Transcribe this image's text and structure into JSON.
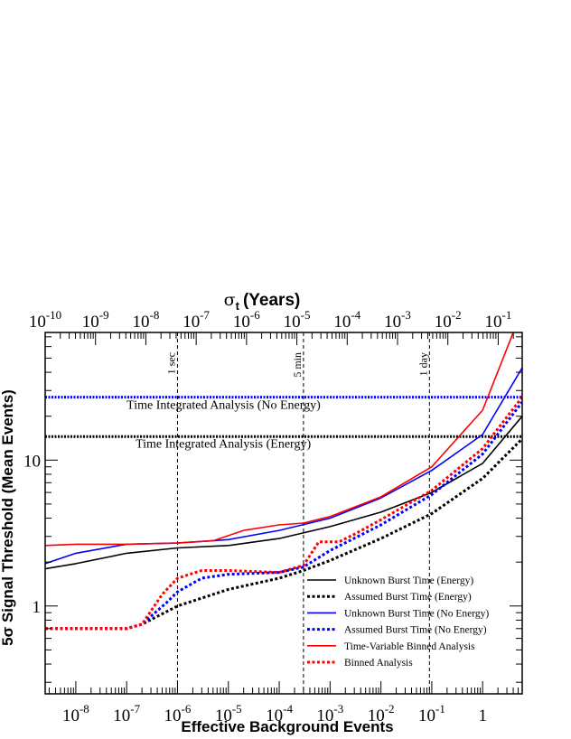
{
  "chart_data": {
    "type": "line",
    "xlabel": "Effective Background Events",
    "ylabel": "5σ Signal Threshold (Mean Events)",
    "top_axis_label_symbol": "σ",
    "top_axis_label_sub": "t",
    "top_axis_label_unit": "(Years)",
    "xscale": "log",
    "yscale": "log",
    "xlim": [
      2.5e-09,
      6.0
    ],
    "ylim": [
      0.25,
      75
    ],
    "x_ticks": [
      {
        "value": 1e-08,
        "base": "10",
        "exp": "-8"
      },
      {
        "value": 1e-07,
        "base": "10",
        "exp": "-7"
      },
      {
        "value": 1e-06,
        "base": "10",
        "exp": "-6"
      },
      {
        "value": 1e-05,
        "base": "10",
        "exp": "-5"
      },
      {
        "value": 0.0001,
        "base": "10",
        "exp": "-4"
      },
      {
        "value": 0.001,
        "base": "10",
        "exp": "-3"
      },
      {
        "value": 0.01,
        "base": "10",
        "exp": "-2"
      },
      {
        "value": 0.1,
        "base": "10",
        "exp": "-1"
      },
      {
        "value": 1,
        "base": "1",
        "exp": ""
      }
    ],
    "y_ticks": [
      {
        "value": 1,
        "label": "1"
      },
      {
        "value": 10,
        "label": "10"
      }
    ],
    "top_axis_xlim": [
      1e-10,
      0.3
    ],
    "top_ticks": [
      {
        "value": 1e-10,
        "base": "10",
        "exp": "-10"
      },
      {
        "value": 1e-09,
        "base": "10",
        "exp": "-9"
      },
      {
        "value": 1e-08,
        "base": "10",
        "exp": "-8"
      },
      {
        "value": 1e-07,
        "base": "10",
        "exp": "-7"
      },
      {
        "value": 1e-06,
        "base": "10",
        "exp": "-6"
      },
      {
        "value": 1e-05,
        "base": "10",
        "exp": "-5"
      },
      {
        "value": 0.0001,
        "base": "10",
        "exp": "-4"
      },
      {
        "value": 0.001,
        "base": "10",
        "exp": "-3"
      },
      {
        "value": 0.01,
        "base": "10",
        "exp": "-2"
      },
      {
        "value": 0.1,
        "base": "10",
        "exp": "-1"
      }
    ],
    "vertical_markers": [
      {
        "x": 1e-06,
        "label": "1 sec"
      },
      {
        "x": 0.0003,
        "label": "5 min"
      },
      {
        "x": 0.09,
        "label": "1 day"
      }
    ],
    "horizontal_refs": [
      {
        "y": 27.0,
        "label": "Time Integrated Analysis (No Energy)",
        "color": "#0000ff",
        "label_x": 1e-07,
        "label_y": 22.5
      },
      {
        "y": 14.5,
        "label": "Time Integrated Analysis (Energy)",
        "color": "#000000",
        "label_x": 1.5e-07,
        "label_y": 12.2
      }
    ],
    "legend_position": "bottom-right",
    "series": [
      {
        "name": "Unknown Burst Time (Energy)",
        "color": "#000000",
        "style": "solid",
        "x": [
          2.5e-09,
          1e-08,
          1e-07,
          1e-06,
          1e-05,
          0.0001,
          0.001,
          0.01,
          0.1,
          1,
          6
        ],
        "y": [
          1.8,
          1.95,
          2.3,
          2.5,
          2.6,
          2.9,
          3.5,
          4.4,
          6.0,
          9.5,
          20.0
        ]
      },
      {
        "name": "Assumed Burst Time (Energy)",
        "color": "#000000",
        "style": "dotted",
        "x": [
          2.5e-09,
          1e-07,
          2e-07,
          1e-06,
          1e-05,
          0.0001,
          0.0003,
          0.001,
          0.01,
          0.1,
          1,
          6
        ],
        "y": [
          0.7,
          0.7,
          0.75,
          1.0,
          1.3,
          1.55,
          1.75,
          2.05,
          2.9,
          4.3,
          7.5,
          14.0
        ]
      },
      {
        "name": "Unknown Burst Time (No Energy)",
        "color": "#0000ff",
        "style": "solid",
        "x": [
          2.5e-09,
          1e-08,
          1e-07,
          1e-06,
          1e-05,
          0.0001,
          0.001,
          0.01,
          0.1,
          1,
          6
        ],
        "y": [
          1.95,
          2.3,
          2.65,
          2.7,
          2.85,
          3.3,
          4.0,
          5.5,
          8.5,
          15.0,
          43.0
        ]
      },
      {
        "name": "Assumed Burst Time (No Energy)",
        "color": "#0000ff",
        "style": "dotted",
        "x": [
          2.5e-09,
          1e-07,
          2e-07,
          6e-07,
          1e-06,
          3e-06,
          1e-05,
          0.0001,
          0.0003,
          0.001,
          0.01,
          0.1,
          1,
          6
        ],
        "y": [
          0.7,
          0.7,
          0.75,
          1.05,
          1.25,
          1.55,
          1.65,
          1.7,
          1.85,
          2.4,
          3.6,
          5.8,
          11.0,
          25.0
        ]
      },
      {
        "name": "Time-Variable Binned Analysis",
        "color": "#ff0000",
        "style": "solid",
        "x": [
          2.5e-09,
          1e-08,
          1e-07,
          1e-06,
          5e-06,
          2e-05,
          0.0001,
          0.0003,
          0.001,
          0.01,
          0.1,
          1,
          4
        ],
        "y": [
          2.6,
          2.65,
          2.65,
          2.7,
          2.8,
          3.3,
          3.6,
          3.7,
          4.1,
          5.6,
          9.0,
          22.0,
          75.0
        ]
      },
      {
        "name": "Binned Analysis",
        "color": "#ff0000",
        "style": "dotted",
        "x": [
          2.5e-09,
          1e-07,
          2e-07,
          5e-07,
          1e-06,
          3e-06,
          1e-05,
          0.0001,
          0.0003,
          0.0006,
          0.0015,
          0.003,
          0.01,
          0.1,
          1,
          6
        ],
        "y": [
          0.7,
          0.7,
          0.75,
          1.2,
          1.55,
          1.75,
          1.75,
          1.7,
          1.9,
          2.75,
          2.75,
          3.1,
          3.9,
          6.2,
          12.0,
          27.0
        ]
      }
    ]
  }
}
